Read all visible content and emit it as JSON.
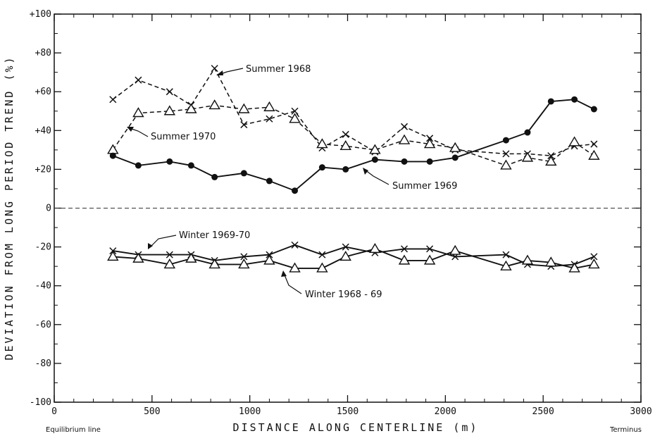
{
  "chart_data": {
    "type": "line",
    "title": "",
    "xlabel": "DISTANCE ALONG CENTERLINE (m)",
    "ylabel": "DEVIATION FROM LONG PERIOD TREND (%)",
    "xlim": [
      0,
      3000
    ],
    "ylim": [
      -100,
      100
    ],
    "x_ticks": [
      0,
      500,
      1000,
      1500,
      2000,
      2500,
      3000
    ],
    "y_ticks": [
      -100,
      -80,
      -60,
      -40,
      -20,
      0,
      20,
      40,
      60,
      80,
      100
    ],
    "x_tick_labels": [
      "0",
      "500",
      "1000",
      "1500",
      "2000",
      "2500",
      "3000"
    ],
    "y_tick_labels": [
      "-100",
      "-80",
      "-60",
      "-40",
      "-20",
      "0",
      "+20",
      "+40",
      "+60",
      "+80",
      "+100"
    ],
    "x_start_label": "Equilibrium line",
    "x_end_label": "Terminus",
    "zero_line": "dashed",
    "grid": false,
    "series": [
      {
        "name": "Summer 1968",
        "marker": "x",
        "line": "dashed",
        "x": [
          300,
          430,
          590,
          700,
          820,
          970,
          1100,
          1230,
          1370,
          1490,
          1640,
          1790,
          1920,
          2050,
          2310,
          2420,
          2540,
          2660,
          2760
        ],
        "y": [
          56,
          66,
          60,
          53,
          72,
          43,
          46,
          50,
          31,
          38,
          29,
          42,
          36,
          30,
          28,
          28,
          27,
          32,
          33
        ]
      },
      {
        "name": "Summer 1970",
        "marker": "triangle",
        "line": "dashed",
        "x": [
          300,
          430,
          590,
          700,
          820,
          970,
          1100,
          1230,
          1370,
          1490,
          1640,
          1790,
          1920,
          2050,
          2310,
          2420,
          2540,
          2660,
          2760
        ],
        "y": [
          30,
          49,
          50,
          51,
          53,
          51,
          52,
          46,
          33,
          32,
          30,
          35,
          33,
          31,
          22,
          26,
          24,
          34,
          27
        ]
      },
      {
        "name": "Summer 1969",
        "marker": "circle",
        "line": "solid",
        "x": [
          300,
          430,
          590,
          700,
          820,
          970,
          1100,
          1230,
          1370,
          1490,
          1640,
          1790,
          1920,
          2050,
          2310,
          2420,
          2540,
          2660,
          2760
        ],
        "y": [
          27,
          22,
          24,
          22,
          16,
          18,
          14,
          9,
          21,
          20,
          25,
          24,
          24,
          26,
          35,
          39,
          55,
          56,
          51
        ]
      },
      {
        "name": "Winter 1969-70",
        "marker": "x",
        "line": "solid",
        "x": [
          300,
          430,
          590,
          700,
          820,
          970,
          1100,
          1230,
          1370,
          1490,
          1640,
          1790,
          1920,
          2050,
          2310,
          2420,
          2540,
          2660,
          2760
        ],
        "y": [
          -22,
          -24,
          -24,
          -24,
          -27,
          -25,
          -24,
          -19,
          -24,
          -20,
          -23,
          -21,
          -21,
          -25,
          -24,
          -29,
          -30,
          -29,
          -25
        ]
      },
      {
        "name": "Winter 1968-69",
        "marker": "triangle",
        "line": "solid",
        "x": [
          300,
          430,
          590,
          700,
          820,
          970,
          1100,
          1230,
          1370,
          1490,
          1640,
          1790,
          1920,
          2050,
          2310,
          2420,
          2540,
          2660,
          2760
        ],
        "y": [
          -25,
          -26,
          -29,
          -26,
          -29,
          -29,
          -27,
          -31,
          -31,
          -25,
          -21,
          -27,
          -27,
          -22,
          -30,
          -27,
          -28,
          -31,
          -29
        ]
      }
    ],
    "annotations": [
      {
        "text": "Summer 1968",
        "series": "Summer 1968"
      },
      {
        "text": "Summer 1970",
        "series": "Summer 1970"
      },
      {
        "text": "Summer 1969",
        "series": "Summer 1969"
      },
      {
        "text": "Winter 1969-70",
        "series": "Winter 1969-70"
      },
      {
        "text": "Winter 1968 - 69",
        "series": "Winter 1968-69"
      }
    ]
  }
}
